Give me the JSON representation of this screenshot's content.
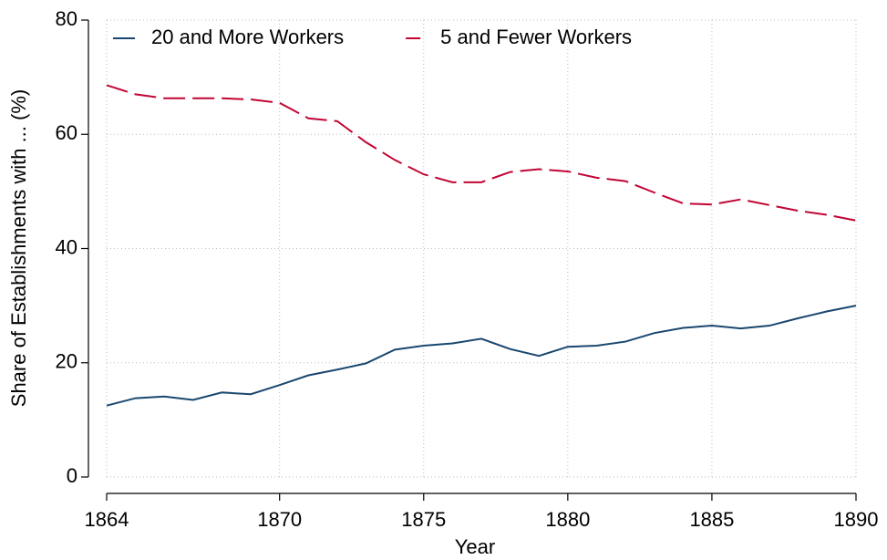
{
  "chart_data": {
    "type": "line",
    "x_label": "Year",
    "y_label": "Share of Establishments with ... (%)",
    "x": [
      1864,
      1865,
      1866,
      1867,
      1868,
      1869,
      1870,
      1871,
      1872,
      1873,
      1874,
      1875,
      1876,
      1877,
      1878,
      1879,
      1880,
      1881,
      1882,
      1883,
      1884,
      1885,
      1886,
      1887,
      1888,
      1889,
      1890
    ],
    "series": [
      {
        "name": "20 and More Workers",
        "color": "#1a476f",
        "dash": false,
        "values": [
          12.5,
          13.8,
          14.1,
          13.5,
          14.8,
          14.5,
          16.1,
          17.8,
          18.8,
          19.9,
          22.3,
          23.0,
          23.4,
          24.2,
          22.4,
          21.2,
          22.8,
          23.0,
          23.7,
          25.2,
          26.1,
          26.5,
          26.0,
          26.5,
          27.8,
          29.0,
          30.0
        ]
      },
      {
        "name": "5 and Fewer Workers",
        "color": "#c10534",
        "dash": true,
        "values": [
          68.6,
          67.0,
          66.3,
          66.3,
          66.3,
          66.1,
          65.5,
          62.8,
          62.3,
          58.6,
          55.5,
          53.0,
          51.6,
          51.6,
          53.4,
          53.9,
          53.5,
          52.4,
          51.8,
          49.8,
          47.9,
          47.7,
          48.6,
          47.6,
          46.6,
          45.9,
          44.9
        ]
      }
    ],
    "xlim": [
      1864,
      1890
    ],
    "xticks": [
      1864,
      1870,
      1875,
      1880,
      1885,
      1890
    ],
    "ylim": [
      0,
      80
    ],
    "yticks": [
      0,
      20,
      40,
      60,
      80
    ],
    "grid": true,
    "legend": "top-left"
  }
}
